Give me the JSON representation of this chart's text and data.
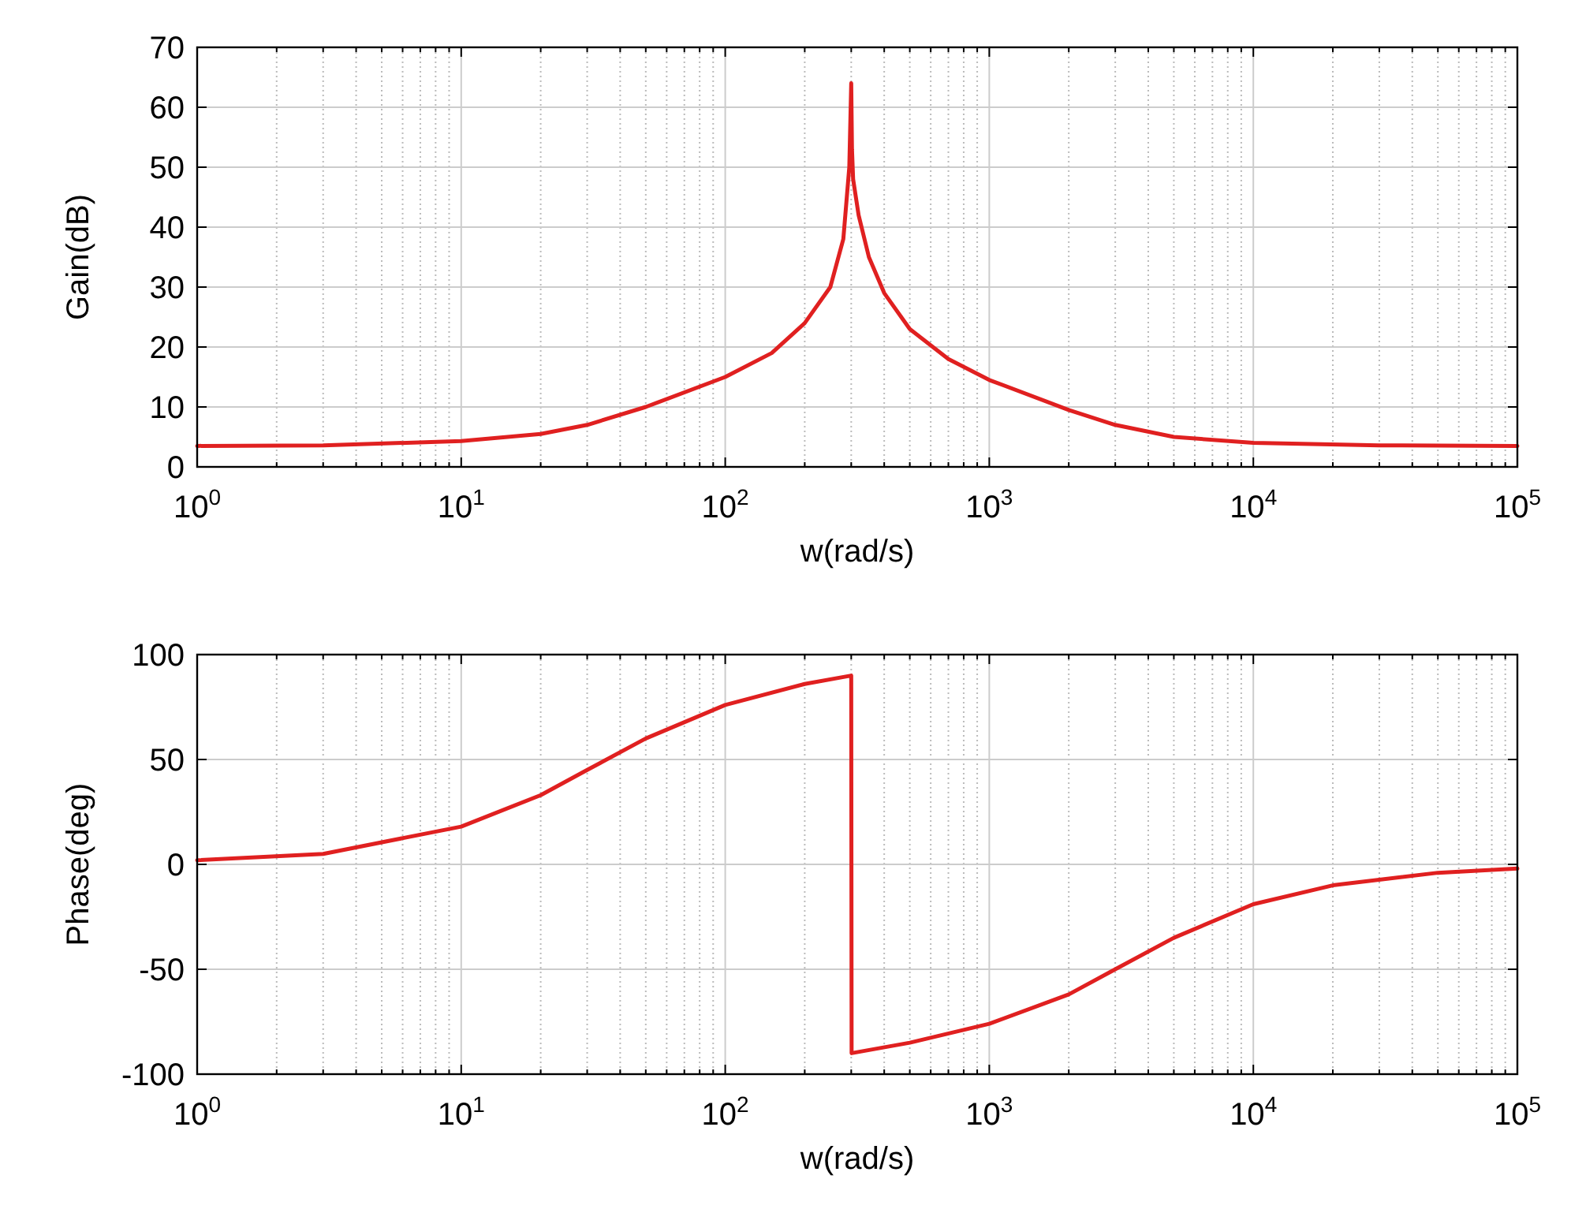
{
  "chart_data": [
    {
      "type": "line",
      "xlabel": "w(rad/s)",
      "ylabel": "Gain(dB)",
      "log": "x",
      "grid": true,
      "xlim": [
        1,
        100000
      ],
      "ylim": [
        0,
        70
      ],
      "xticks": [
        {
          "value": 1,
          "label": "10$^{0}$"
        },
        {
          "value": 10,
          "label": "10$^{1}$"
        },
        {
          "value": 100,
          "label": "10$^{2}$"
        },
        {
          "value": 1000,
          "label": "10$^{3}$"
        },
        {
          "value": 10000,
          "label": "10$^{4}$"
        },
        {
          "value": 100000,
          "label": "10$^{5}$"
        }
      ],
      "yticks": [
        0,
        10,
        20,
        30,
        40,
        50,
        60,
        70
      ],
      "series": [
        {
          "color": "#e02020",
          "x": [
            1,
            3,
            10,
            20,
            30,
            50,
            100,
            150,
            200,
            250,
            280,
            295,
            300,
            302,
            305,
            320,
            350,
            400,
            500,
            700,
            1000,
            2000,
            3000,
            5000,
            10000,
            30000,
            100000
          ],
          "values": [
            3.5,
            3.6,
            4.3,
            5.5,
            7,
            10,
            15,
            19,
            24,
            30,
            38,
            50,
            64,
            53,
            48,
            42,
            35,
            29,
            23,
            18,
            14.5,
            9.5,
            7,
            5,
            4,
            3.6,
            3.5
          ]
        }
      ]
    },
    {
      "type": "line",
      "xlabel": "w(rad/s)",
      "ylabel": "Phase(deg)",
      "log": "x",
      "grid": true,
      "xlim": [
        1,
        100000
      ],
      "ylim": [
        -100,
        100
      ],
      "xticks": [
        {
          "value": 1,
          "label": "10$^{0}$"
        },
        {
          "value": 10,
          "label": "10$^{1}$"
        },
        {
          "value": 100,
          "label": "10$^{2}$"
        },
        {
          "value": 1000,
          "label": "10$^{3}$"
        },
        {
          "value": 10000,
          "label": "10$^{4}$"
        },
        {
          "value": 100000,
          "label": "10$^{5}$"
        }
      ],
      "yticks": [
        -100,
        -50,
        0,
        50,
        100
      ],
      "series": [
        {
          "color": "#e02020",
          "x": [
            1,
            3,
            10,
            20,
            30,
            50,
            100,
            200,
            300,
            301,
            500,
            1000,
            2000,
            3000,
            5000,
            10000,
            20000,
            50000,
            100000
          ],
          "values": [
            2,
            5,
            18,
            33,
            45,
            60,
            76,
            86,
            90,
            -90,
            -85,
            -76,
            -62,
            -50,
            -35,
            -19,
            -10,
            -4,
            -2
          ]
        }
      ]
    }
  ]
}
